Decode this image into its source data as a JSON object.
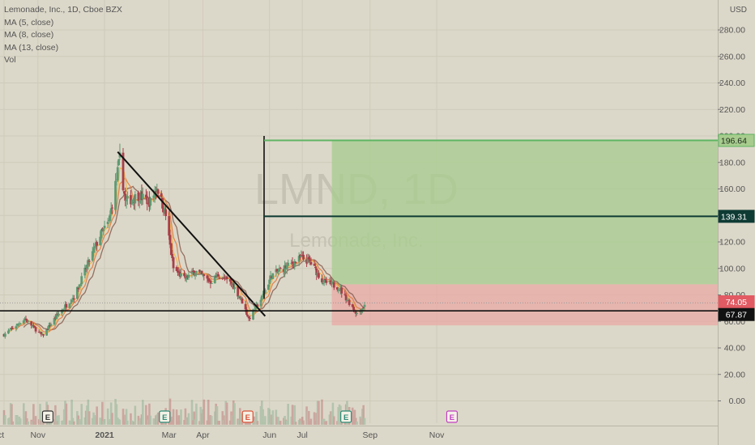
{
  "header": {
    "title": "Lemonade, Inc., 1D, Cboe BZX",
    "indicators": [
      "MA (5, close)",
      "MA (8, close)",
      "MA (13, close)",
      "Vol"
    ],
    "currency": "USD"
  },
  "colors": {
    "background": "#dcd8c9",
    "up_candle": "#5e9a73",
    "down_candle": "#a83f4a",
    "ma5": "#f0b44a",
    "ma8": "#e07f46",
    "ma13": "#8c6455",
    "target_zone": "#a7cc8d",
    "stop_zone": "#e9a7a2",
    "trendline": "#111111",
    "target_line": "#5fb564",
    "entry_line": "#0e3b34",
    "stop_line": "#9b9b9b",
    "entry_tag": "#0e3b34",
    "price_tag": "#e25a63",
    "support_tag": "#111111",
    "earnings_past": "#2e8a76",
    "earnings_due": "#d9533b",
    "earnings_future": "#c23fc4"
  },
  "watermark": {
    "symbol": "LMND, 1D",
    "name": "Lemonade, Inc."
  },
  "chart_data": {
    "type": "candlestick",
    "title": "Lemonade, Inc., 1D, Cboe BZX",
    "y_axis": {
      "ticks": [
        "280.00",
        "260.00",
        "240.00",
        "220.00",
        "200.00",
        "180.00",
        "160.00",
        "140.00",
        "120.00",
        "100.00",
        "80.00",
        "60.00",
        "40.00",
        "20.00",
        "0.00"
      ],
      "unit": "USD"
    },
    "x_axis": {
      "ticks": [
        "Oct",
        "Nov",
        "2021",
        "Mar",
        "Apr",
        "Jun",
        "Jul",
        "Sep",
        "Nov"
      ]
    },
    "price_trend_points": [
      [
        "2020-10-01",
        50
      ],
      [
        "2020-10-20",
        62
      ],
      [
        "2020-11-05",
        49
      ],
      [
        "2020-11-18",
        64
      ],
      [
        "2020-12-05",
        80
      ],
      [
        "2020-12-15",
        100
      ],
      [
        "2020-12-28",
        125
      ],
      [
        "2021-01-05",
        135
      ],
      [
        "2021-01-12",
        168
      ],
      [
        "2021-01-15",
        183
      ],
      [
        "2021-01-20",
        150
      ],
      [
        "2021-02-01",
        155
      ],
      [
        "2021-02-12",
        150
      ],
      [
        "2021-02-18",
        162
      ],
      [
        "2021-02-26",
        140
      ],
      [
        "2021-03-05",
        100
      ],
      [
        "2021-03-15",
        92
      ],
      [
        "2021-03-25",
        98
      ],
      [
        "2021-04-08",
        90
      ],
      [
        "2021-04-15",
        95
      ],
      [
        "2021-04-28",
        88
      ],
      [
        "2021-05-07",
        75
      ],
      [
        "2021-05-13",
        62
      ],
      [
        "2021-05-25",
        78
      ],
      [
        "2021-06-03",
        95
      ],
      [
        "2021-06-18",
        102
      ],
      [
        "2021-06-30",
        108
      ],
      [
        "2021-07-08",
        105
      ],
      [
        "2021-07-20",
        90
      ],
      [
        "2021-08-03",
        86
      ],
      [
        "2021-08-15",
        72
      ],
      [
        "2021-08-20",
        66
      ],
      [
        "2021-08-27",
        72
      ]
    ],
    "moving_averages": [
      "MA (5, close)",
      "MA (8, close)",
      "MA (13, close)"
    ],
    "volume": "Vol",
    "long_position": {
      "target": "196.64",
      "entry": "139.31",
      "stop": 57
    },
    "price_labels": {
      "target": "196.64",
      "entry": "139.31",
      "last": "74.05",
      "support": "67.87"
    },
    "trendline": {
      "from": [
        "2021-01-13",
        188
      ],
      "to": [
        "2021-05-28",
        64
      ]
    },
    "horizontal_support": 68,
    "earnings_markers": [
      {
        "date": "2020-11-10",
        "label": "E",
        "kind": "past"
      },
      {
        "date": "2021-02-25",
        "label": "E",
        "kind": "past"
      },
      {
        "date": "2021-05-12",
        "label": "E",
        "kind": "due"
      },
      {
        "date": "2021-08-10",
        "label": "E",
        "kind": "past"
      },
      {
        "date": "2021-11-15",
        "label": "E",
        "kind": "future"
      }
    ]
  }
}
